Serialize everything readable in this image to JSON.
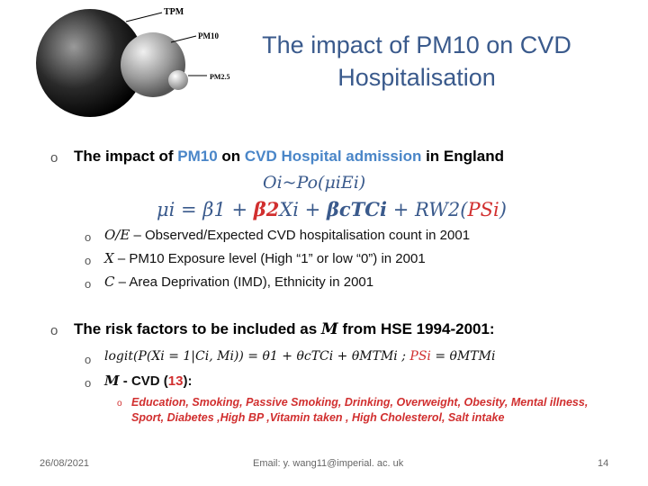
{
  "slide": {
    "title_line1": "The impact of  PM10 on CVD",
    "title_line2": "Hospitalisation",
    "logo_labels": {
      "tpm": "TPM",
      "pm10": "PM10",
      "pm25": "PM2.5"
    },
    "section1": {
      "prefix": "The impact of ",
      "pm10": "PM10",
      "on": " on ",
      "cvd": "CVD Hospital admission",
      "suffix": " in England",
      "eq1": "Oi~Po(μiEi)",
      "eq2_a": "μi = β1 + ",
      "eq2_b": "β2",
      "eq2_c": "Xi + ",
      "eq2_d": "βcTCi",
      "eq2_e": " + RW2(",
      "eq2_f": "PSi",
      "eq2_g": ")",
      "items": [
        {
          "sym": "O/E",
          "text": " – Observed/Expected CVD hospitalisation count in 2001"
        },
        {
          "sym": "X",
          "text": " – PM10 Exposure level (High “1” or low “0”) in 2001"
        },
        {
          "sym": "C",
          "text": " – Area Deprivation (IMD), Ethnicity in 2001"
        }
      ]
    },
    "section2": {
      "prefix": "The risk factors to be included as ",
      "sym": "M",
      "suffix": " from HSE 1994-2001:",
      "formula_a": "logit(P(Xi = 1|Ci, Mi)) = θ1 + θcTCi + θMTMi ;",
      "formula_b": "PSi",
      "formula_c": " = θMTMi",
      "m_label_a": "M",
      "m_label_b": " - CVD (",
      "m_label_c": "13",
      "m_label_d": "):",
      "factors_line1": "Education, Smoking, Passive Smoking, Drinking, Overweight, Obesity, Mental illness,",
      "factors_line2": "Sport, Diabetes ,High BP ,Vitamin taken , High Cholesterol,  Salt intake"
    },
    "footer": {
      "date": "26/08/2021",
      "email": "Email: y. wang11@imperial. ac. uk",
      "page": "14"
    }
  }
}
